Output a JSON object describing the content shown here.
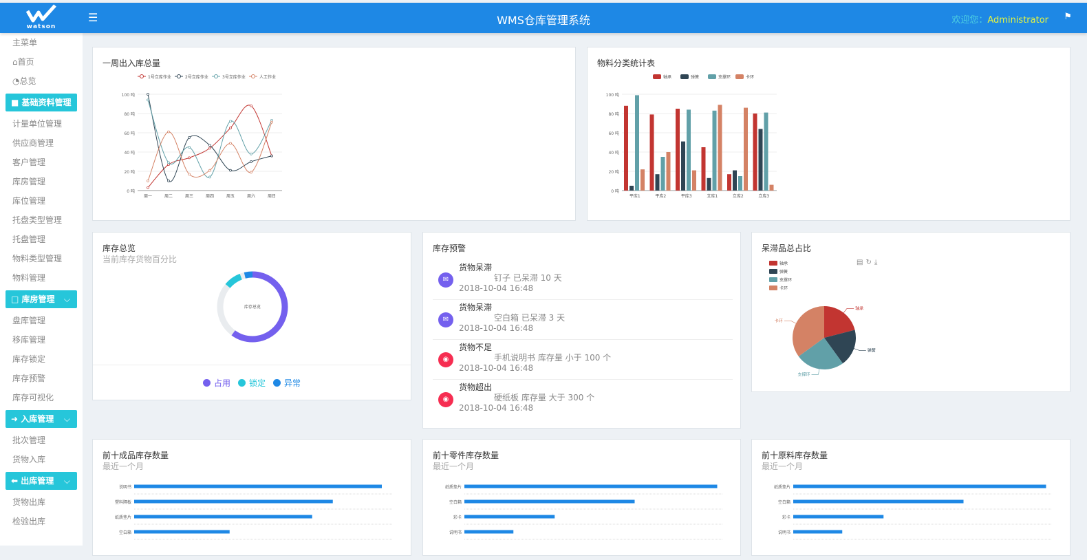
{
  "header": {
    "logo_text": "watson",
    "title": "WMS仓库管理系统",
    "welcome": "欢迎您：",
    "user": "Administrator",
    "menu_icon": "hamburger-icon",
    "flag_icon": "flag-icon"
  },
  "sidebar": {
    "main_menu": "主菜单",
    "home": "首页",
    "overview": "总览",
    "groups": [
      {
        "label": "基础资料管理",
        "icon": "folder-icon",
        "items": [
          "计量单位管理",
          "供应商管理",
          "客户管理",
          "库房管理",
          "库位管理",
          "托盘类型管理",
          "托盘管理",
          "物料类型管理",
          "物料管理"
        ]
      },
      {
        "label": "库房管理",
        "icon": "square-icon",
        "items": [
          "盘库管理",
          "移库管理",
          "库存锁定",
          "库存预警",
          "库存可视化"
        ]
      },
      {
        "label": "入库管理",
        "icon": "arrow-right-icon",
        "items": [
          "批次管理",
          "货物入库"
        ]
      },
      {
        "label": "出库管理",
        "icon": "arrow-left-icon",
        "items": [
          "货物出库",
          "检验出库"
        ]
      }
    ]
  },
  "colors": {
    "header": "#1e88e5",
    "accent": "#26c6da",
    "series": [
      "#c23531",
      "#2f4554",
      "#61a0a8",
      "#d48265"
    ],
    "bar": "#1e88e5"
  },
  "cards": {
    "weekly": {
      "title": "一周出入库总量"
    },
    "category": {
      "title": "物料分类统计表"
    },
    "inventory": {
      "title": "库存总览",
      "subtitle": "当前库存货物百分比",
      "center": "库存总览",
      "legend": [
        {
          "label": "占用",
          "value": 60,
          "color": "#7460ee"
        },
        {
          "label": "锁定",
          "value": 8,
          "color": "#26c6da"
        },
        {
          "label": "异常",
          "value": 4,
          "color": "#1e88e5"
        }
      ]
    },
    "alerts": {
      "title": "库存预警",
      "items": [
        {
          "type": "货物呆滞",
          "text": "钉子 已呆滞 10 天",
          "time": "2018-10-04 16:48",
          "icon": "mail-icon",
          "color": "#7460ee"
        },
        {
          "type": "货物呆滞",
          "text": "空白箱 已呆滞 3 天",
          "time": "2018-10-04 16:48",
          "icon": "mail-icon",
          "color": "#7460ee"
        },
        {
          "type": "货物不足",
          "text": "手机说明书 库存量 小于 100 个",
          "time": "2018-10-04 16:48",
          "icon": "globe-icon",
          "color": "#f62d51"
        },
        {
          "type": "货物超出",
          "text": "硬纸板 库存量 大于 300 个",
          "time": "2018-10-04 16:48",
          "icon": "globe-icon",
          "color": "#f62d51"
        }
      ]
    },
    "stagnant": {
      "title": "呆滞品总占比",
      "toolbox": [
        "data-view-icon",
        "refresh-icon",
        "download-icon"
      ]
    },
    "top1": {
      "title": "前十成品库存数量",
      "subtitle": "最近一个月"
    },
    "top2": {
      "title": "前十零件库存数量",
      "subtitle": "最近一个月"
    },
    "top3": {
      "title": "前十原料库存数量",
      "subtitle": "最近一个月"
    }
  },
  "chart_data": [
    {
      "type": "line",
      "smooth": true,
      "categories": [
        "周一",
        "周二",
        "周三",
        "周四",
        "周五",
        "周六",
        "周日"
      ],
      "ylim": [
        0,
        100
      ],
      "yticks": [
        "0 吨",
        "20 吨",
        "40 吨",
        "60 吨",
        "80 吨",
        "100 吨"
      ],
      "legend_position": "top",
      "grid": true,
      "series": [
        {
          "name": "1号立库作业",
          "values": [
            3,
            27,
            34,
            44,
            65,
            88,
            36
          ]
        },
        {
          "name": "2号立库作业",
          "values": [
            100,
            10,
            55,
            47,
            21,
            30,
            36
          ]
        },
        {
          "name": "3号立库作业",
          "values": [
            94,
            29,
            45,
            14,
            72,
            38,
            73
          ]
        },
        {
          "name": "人工作业",
          "values": [
            10,
            61,
            17,
            21,
            49,
            19,
            71
          ]
        }
      ]
    },
    {
      "type": "bar",
      "categories": [
        "平库1",
        "平库2",
        "平库3",
        "立库1",
        "立库2",
        "立库3"
      ],
      "ylim": [
        0,
        100
      ],
      "yticks": [
        "0 吨",
        "20 吨",
        "40 吨",
        "60 吨",
        "80 吨",
        "100 吨"
      ],
      "legend_position": "top",
      "grid": true,
      "series": [
        {
          "name": "轴承",
          "values": [
            88,
            79,
            85,
            45,
            17,
            80
          ]
        },
        {
          "name": "弹簧",
          "values": [
            5,
            17,
            51,
            13,
            21,
            64
          ]
        },
        {
          "name": "支撑环",
          "values": [
            99,
            35,
            84,
            83,
            15,
            81
          ]
        },
        {
          "name": "卡环",
          "values": [
            22,
            40,
            21,
            89,
            86,
            6
          ]
        }
      ]
    },
    {
      "type": "pie",
      "legend_position": "top-left",
      "slices": [
        {
          "name": "轴承",
          "value": 21
        },
        {
          "name": "弹簧",
          "value": 19
        },
        {
          "name": "支撑环",
          "value": 25
        },
        {
          "name": "卡环",
          "value": 35
        }
      ]
    },
    {
      "type": "bar",
      "orientation": "horizontal",
      "categories": [
        "说明书",
        "塑料隔板",
        "纸质垫片",
        "空白箱"
      ],
      "values": [
        96,
        77,
        69,
        37
      ]
    },
    {
      "type": "bar",
      "orientation": "horizontal",
      "categories": [
        "纸质垫片",
        "空白箱",
        "彩卡",
        "说明书"
      ],
      "values": [
        98,
        66,
        35,
        19
      ]
    },
    {
      "type": "bar",
      "orientation": "horizontal",
      "categories": [
        "纸质垫片",
        "空白箱",
        "彩卡",
        "说明书"
      ],
      "values": [
        98,
        66,
        35,
        19
      ]
    }
  ]
}
